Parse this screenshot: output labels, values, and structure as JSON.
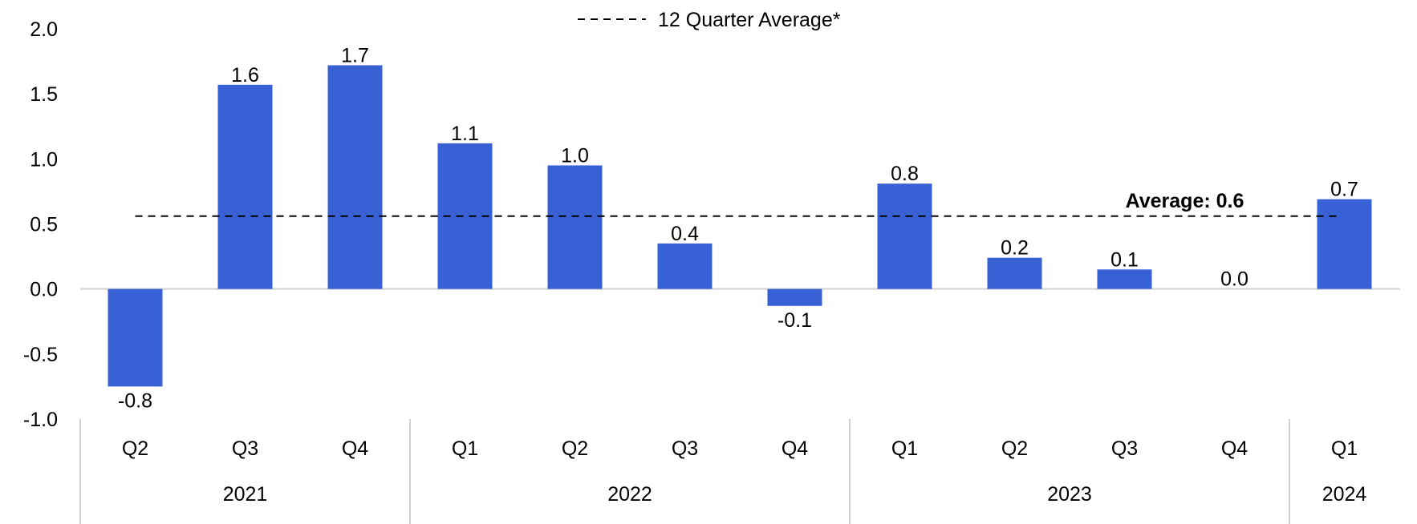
{
  "chart_data": {
    "type": "bar",
    "categories": [
      "Q2",
      "Q3",
      "Q4",
      "Q1",
      "Q2",
      "Q3",
      "Q4",
      "Q1",
      "Q2",
      "Q3",
      "Q4",
      "Q1"
    ],
    "groups": [
      {
        "label": "2021",
        "count": 3
      },
      {
        "label": "2022",
        "count": 4
      },
      {
        "label": "2023",
        "count": 4
      },
      {
        "label": "2024",
        "count": 1
      }
    ],
    "values": [
      -0.75,
      1.57,
      1.72,
      1.12,
      0.95,
      0.35,
      -0.13,
      0.81,
      0.24,
      0.15,
      0.0,
      0.69
    ],
    "data_labels": [
      "-0.8",
      "1.6",
      "1.7",
      "1.1",
      "1.0",
      "0.4",
      "-0.1",
      "0.8",
      "0.2",
      "0.1",
      "0.0",
      "0.7"
    ],
    "ylim": [
      -1.0,
      2.0
    ],
    "yticks": [
      -1.0,
      -0.5,
      0.0,
      0.5,
      1.0,
      1.5,
      2.0
    ],
    "ytick_labels": [
      "-1.0",
      "-0.5",
      "0.0",
      "0.5",
      "1.0",
      "1.5",
      "2.0"
    ],
    "reference_line": {
      "value": 0.56,
      "style": "dashed",
      "label": "Average: 0.6"
    },
    "legend": {
      "entry": "12 Quarter Average*",
      "position": "top-center"
    },
    "bar_color": "#3761d4",
    "grid": false
  }
}
